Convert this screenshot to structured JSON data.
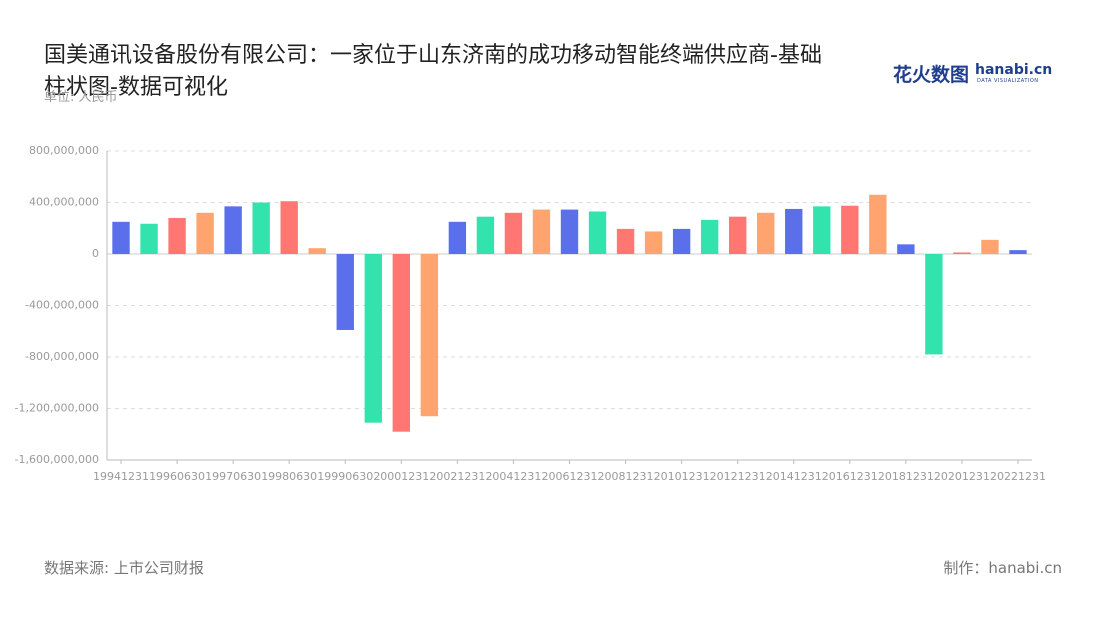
{
  "chart_data": {
    "type": "bar",
    "title": "国美通讯设备股份有限公司：一家位于山东济南的成功移动智能终端供应商-基础柱状图-数据可视化",
    "subtitle": "单位: 人民币",
    "logo": "花火数图",
    "logo_site": "hanabi.cn",
    "logo_tagline": "DATA VISUALIZATION",
    "source": "数据来源: 上市公司财报",
    "maker": "制作：hanabi.cn",
    "categories": [
      "19941231",
      null,
      "19960630",
      null,
      "19970630",
      null,
      "19980630",
      null,
      "19990630",
      null,
      "20001231",
      null,
      "20021231",
      null,
      "20041231",
      null,
      "20061231",
      null,
      "20081231",
      null,
      "20101231",
      null,
      "20121231",
      null,
      "20141231",
      null,
      "20161231",
      null,
      "20181231",
      null,
      "20201231",
      null,
      "20221231"
    ],
    "values": [
      250000000,
      235000000,
      280000000,
      320000000,
      370000000,
      400000000,
      410000000,
      45000000,
      -590000000,
      -1310000000,
      -1380000000,
      -1260000000,
      250000000,
      290000000,
      320000000,
      345000000,
      345000000,
      330000000,
      195000000,
      175000000,
      195000000,
      265000000,
      290000000,
      320000000,
      350000000,
      370000000,
      375000000,
      460000000,
      75000000,
      -780000000,
      12000000,
      110000000,
      30000000
    ],
    "colors": [
      "#5b6fea",
      "#33e3ae",
      "#ff7673",
      "#ffa36f"
    ],
    "ylim": [
      -1600000000,
      800000000
    ],
    "yticks": [
      {
        "value": -1600000000,
        "label": "-1,600,000,000"
      },
      {
        "value": -1200000000,
        "label": "-1,200,000,000"
      },
      {
        "value": -800000000,
        "label": "-800,000,000"
      },
      {
        "value": -400000000,
        "label": "-400,000,000"
      },
      0,
      {
        "value": 400000000,
        "label": "400,000,000"
      },
      {
        "value": 800000000,
        "label": "800,000,000"
      }
    ],
    "grid": true
  }
}
